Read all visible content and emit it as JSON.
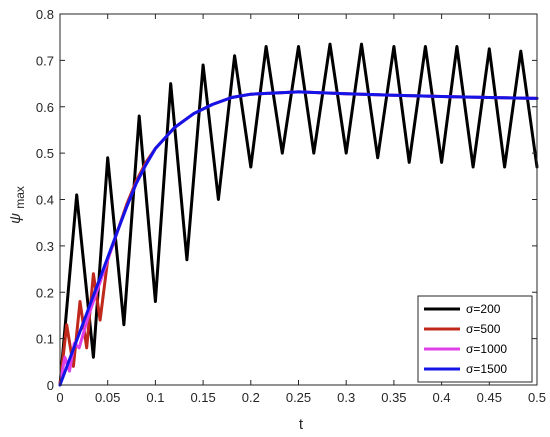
{
  "chart_data": {
    "type": "line",
    "xlabel": "t",
    "ylabel": "ψ",
    "ylabel_sub": "max",
    "xlim": [
      0,
      0.5
    ],
    "ylim": [
      0,
      0.8
    ],
    "xticks": [
      "0",
      "0.05",
      "0.1",
      "0.15",
      "0.2",
      "0.25",
      "0.3",
      "0.35",
      "0.4",
      "0.45",
      "0.5"
    ],
    "yticks": [
      "0",
      "0.1",
      "0.2",
      "0.3",
      "0.4",
      "0.5",
      "0.6",
      "0.7",
      "0.8"
    ],
    "grid": false,
    "legend_position": "bottom-right",
    "series": [
      {
        "name": "σ=200",
        "color": "#000000",
        "points": [
          [
            0,
            0
          ],
          [
            0.0175,
            0.41
          ],
          [
            0.035,
            0.06
          ],
          [
            0.05,
            0.49
          ],
          [
            0.067,
            0.13
          ],
          [
            0.083,
            0.58
          ],
          [
            0.1,
            0.18
          ],
          [
            0.116,
            0.65
          ],
          [
            0.133,
            0.27
          ],
          [
            0.15,
            0.69
          ],
          [
            0.166,
            0.4
          ],
          [
            0.183,
            0.71
          ],
          [
            0.2,
            0.47
          ],
          [
            0.216,
            0.73
          ],
          [
            0.233,
            0.5
          ],
          [
            0.25,
            0.73
          ],
          [
            0.266,
            0.5
          ],
          [
            0.283,
            0.735
          ],
          [
            0.3,
            0.5
          ],
          [
            0.316,
            0.735
          ],
          [
            0.333,
            0.49
          ],
          [
            0.35,
            0.73
          ],
          [
            0.366,
            0.48
          ],
          [
            0.383,
            0.73
          ],
          [
            0.4,
            0.48
          ],
          [
            0.416,
            0.73
          ],
          [
            0.433,
            0.47
          ],
          [
            0.45,
            0.725
          ],
          [
            0.466,
            0.47
          ],
          [
            0.483,
            0.72
          ],
          [
            0.5,
            0.47
          ]
        ]
      },
      {
        "name": "σ=500",
        "color": "#c0281c",
        "points": [
          [
            0,
            0
          ],
          [
            0.007,
            0.13
          ],
          [
            0.014,
            0.04
          ],
          [
            0.021,
            0.18
          ],
          [
            0.028,
            0.08
          ],
          [
            0.035,
            0.24
          ],
          [
            0.042,
            0.14
          ],
          [
            0.05,
            0.27
          ],
          [
            0.06,
            0.33
          ],
          [
            0.07,
            0.39
          ],
          [
            0.08,
            0.44
          ],
          [
            0.09,
            0.48
          ],
          [
            0.1,
            0.51
          ],
          [
            0.12,
            0.555
          ],
          [
            0.14,
            0.585
          ],
          [
            0.16,
            0.605
          ],
          [
            0.18,
            0.62
          ],
          [
            0.2,
            0.627
          ],
          [
            0.25,
            0.632
          ],
          [
            0.3,
            0.628
          ],
          [
            0.35,
            0.625
          ],
          [
            0.4,
            0.622
          ],
          [
            0.45,
            0.62
          ],
          [
            0.5,
            0.618
          ]
        ]
      },
      {
        "name": "σ=1000",
        "color": "#e040e8",
        "points": [
          [
            0,
            0
          ],
          [
            0.005,
            0.06
          ],
          [
            0.01,
            0.03
          ],
          [
            0.015,
            0.09
          ],
          [
            0.02,
            0.08
          ],
          [
            0.03,
            0.15
          ],
          [
            0.04,
            0.21
          ],
          [
            0.05,
            0.27
          ],
          [
            0.06,
            0.33
          ],
          [
            0.07,
            0.385
          ],
          [
            0.08,
            0.435
          ],
          [
            0.09,
            0.475
          ],
          [
            0.1,
            0.51
          ],
          [
            0.12,
            0.555
          ],
          [
            0.14,
            0.585
          ],
          [
            0.16,
            0.605
          ],
          [
            0.18,
            0.62
          ],
          [
            0.2,
            0.627
          ],
          [
            0.25,
            0.632
          ],
          [
            0.3,
            0.628
          ],
          [
            0.35,
            0.625
          ],
          [
            0.4,
            0.622
          ],
          [
            0.45,
            0.62
          ],
          [
            0.5,
            0.618
          ]
        ]
      },
      {
        "name": "σ=1500",
        "color": "#1414e6",
        "points": [
          [
            0,
            0
          ],
          [
            0.01,
            0.055
          ],
          [
            0.02,
            0.11
          ],
          [
            0.03,
            0.165
          ],
          [
            0.04,
            0.22
          ],
          [
            0.05,
            0.275
          ],
          [
            0.06,
            0.33
          ],
          [
            0.07,
            0.385
          ],
          [
            0.08,
            0.435
          ],
          [
            0.09,
            0.475
          ],
          [
            0.1,
            0.51
          ],
          [
            0.12,
            0.555
          ],
          [
            0.14,
            0.585
          ],
          [
            0.16,
            0.605
          ],
          [
            0.18,
            0.62
          ],
          [
            0.2,
            0.627
          ],
          [
            0.25,
            0.632
          ],
          [
            0.3,
            0.628
          ],
          [
            0.35,
            0.625
          ],
          [
            0.4,
            0.622
          ],
          [
            0.45,
            0.62
          ],
          [
            0.5,
            0.618
          ]
        ]
      }
    ]
  }
}
